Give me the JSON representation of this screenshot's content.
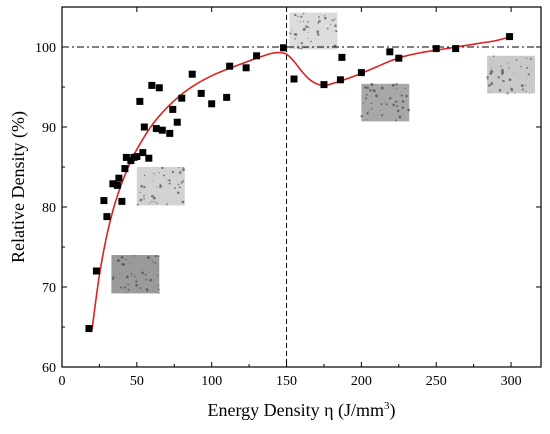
{
  "chart_data": {
    "type": "scatter",
    "title": "",
    "xlabel_main": "Energy Density η (J/mm",
    "xlabel_sup": "3",
    "xlabel_close": ")",
    "ylabel": "Relative Density (%)",
    "xlim": [
      0,
      320
    ],
    "ylim": [
      60,
      105
    ],
    "xticks": [
      0,
      50,
      100,
      150,
      200,
      250,
      300
    ],
    "yticks": [
      60,
      70,
      80,
      90,
      100
    ],
    "grid": false,
    "reference_lines": {
      "horizontal_y": 100,
      "vertical_x": 150
    },
    "series": [
      {
        "marker": "square",
        "color": "#000000",
        "points": [
          [
            18,
            64.8
          ],
          [
            23,
            72.0
          ],
          [
            28,
            80.8
          ],
          [
            30,
            78.8
          ],
          [
            34,
            82.9
          ],
          [
            37,
            82.7
          ],
          [
            38,
            83.6
          ],
          [
            40,
            80.7
          ],
          [
            42,
            84.8
          ],
          [
            43,
            86.2
          ],
          [
            46,
            85.8
          ],
          [
            48,
            86.2
          ],
          [
            50,
            86.3
          ],
          [
            52,
            93.2
          ],
          [
            54,
            86.8
          ],
          [
            55,
            90.0
          ],
          [
            58,
            86.1
          ],
          [
            60,
            95.2
          ],
          [
            63,
            89.8
          ],
          [
            65,
            94.9
          ],
          [
            67,
            89.6
          ],
          [
            72,
            89.2
          ],
          [
            74,
            92.2
          ],
          [
            77,
            90.6
          ],
          [
            80,
            93.6
          ],
          [
            87,
            96.6
          ],
          [
            93,
            94.2
          ],
          [
            100,
            92.9
          ],
          [
            110,
            93.7
          ],
          [
            112,
            97.6
          ],
          [
            123,
            97.4
          ],
          [
            130,
            98.9
          ],
          [
            148,
            99.9
          ],
          [
            155,
            96.0
          ],
          [
            175,
            95.3
          ],
          [
            186,
            95.9
          ],
          [
            187,
            98.7
          ],
          [
            200,
            96.8
          ],
          [
            219,
            99.4
          ],
          [
            225,
            98.6
          ],
          [
            250,
            99.8
          ],
          [
            263,
            99.8
          ],
          [
            299,
            101.3
          ]
        ]
      },
      {
        "style": "fit-curve",
        "color": "#e02020",
        "points": [
          [
            20,
            64.6
          ],
          [
            25,
            71.5
          ],
          [
            30,
            76.5
          ],
          [
            35,
            80.2
          ],
          [
            40,
            83.0
          ],
          [
            45,
            85.3
          ],
          [
            50,
            87.2
          ],
          [
            60,
            90.2
          ],
          [
            70,
            92.4
          ],
          [
            80,
            94.1
          ],
          [
            90,
            95.4
          ],
          [
            100,
            96.4
          ],
          [
            110,
            97.2
          ],
          [
            120,
            97.9
          ],
          [
            130,
            98.6
          ],
          [
            140,
            99.2
          ],
          [
            145,
            99.3
          ],
          [
            150,
            99.1
          ],
          [
            155,
            98.2
          ],
          [
            160,
            97.0
          ],
          [
            165,
            96.0
          ],
          [
            170,
            95.4
          ],
          [
            175,
            95.2
          ],
          [
            180,
            95.4
          ],
          [
            190,
            96.0
          ],
          [
            200,
            96.7
          ],
          [
            210,
            97.5
          ],
          [
            220,
            98.3
          ],
          [
            230,
            98.9
          ],
          [
            240,
            99.3
          ],
          [
            250,
            99.6
          ],
          [
            260,
            99.9
          ],
          [
            270,
            100.2
          ],
          [
            280,
            100.5
          ],
          [
            290,
            100.8
          ],
          [
            300,
            101.3
          ]
        ]
      }
    ],
    "insets": [
      {
        "name": "micrograph-inset-1",
        "x": 33,
        "y": 69.2,
        "w": 32,
        "h": 4.8,
        "tone": "#9a9a9a"
      },
      {
        "name": "micrograph-inset-2",
        "x": 50,
        "y": 80.2,
        "w": 32,
        "h": 4.8,
        "tone": "#d2d2d2"
      },
      {
        "name": "micrograph-inset-3",
        "x": 152,
        "y": 99.7,
        "w": 32,
        "h": 4.6,
        "tone": "#dcdcdc"
      },
      {
        "name": "micrograph-inset-4",
        "x": 200,
        "y": 90.7,
        "w": 32,
        "h": 4.7,
        "tone": "#a8a8a8"
      },
      {
        "name": "micrograph-inset-5",
        "x": 284,
        "y": 94.2,
        "w": 32,
        "h": 4.7,
        "tone": "#c9c9c9"
      }
    ]
  }
}
